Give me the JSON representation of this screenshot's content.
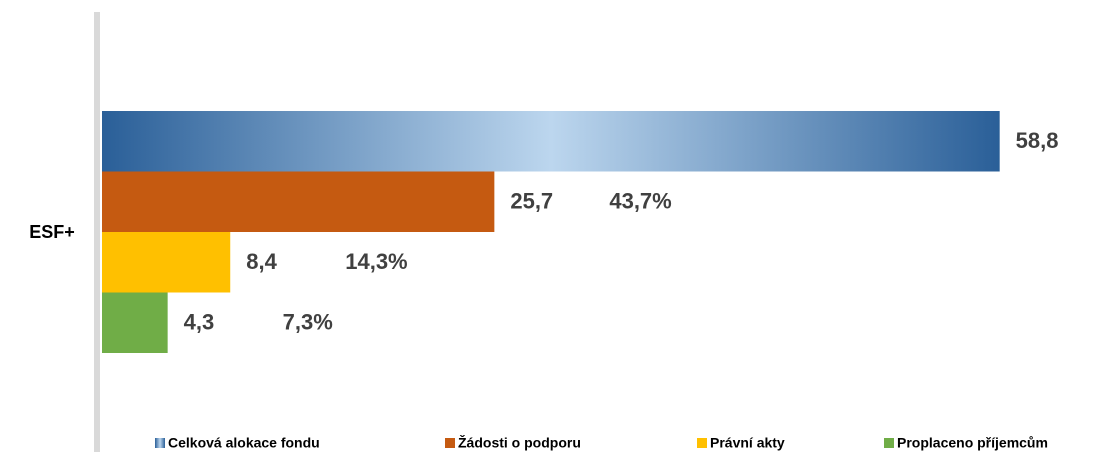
{
  "chart_data": {
    "type": "hbar",
    "categories": [
      "ESF+"
    ],
    "xlim": [
      0,
      60
    ],
    "series": [
      {
        "name": "Celková alokace fondu",
        "color": "#2f6ba7",
        "values": [
          58.8
        ],
        "value_labels": [
          "58,8"
        ]
      },
      {
        "name": "Žádosti o podporu",
        "color": "#c55a11",
        "values": [
          25.7
        ],
        "value_labels": [
          "25,7"
        ],
        "percent_label": "43,7%"
      },
      {
        "name": "Právní akty",
        "color": "#ffc000",
        "values": [
          8.4
        ],
        "value_labels": [
          "8,4"
        ],
        "percent_label": "14,3%"
      },
      {
        "name": "Proplaceno příjemcům",
        "color": "#70ad47",
        "values": [
          4.3
        ],
        "value_labels": [
          "4,3"
        ],
        "percent_label": "7,3%"
      }
    ],
    "legend": "bottom"
  }
}
